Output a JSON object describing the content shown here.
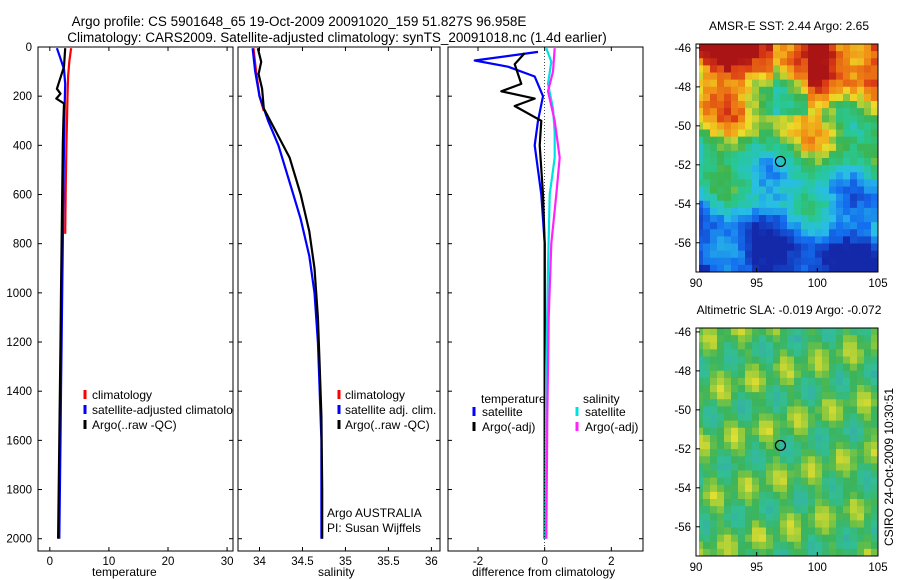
{
  "figure": {
    "title_line1": "Argo profile: CS 5901648_65 19-Oct-2009 20091020_159 51.827S 96.958E",
    "title_line2": "Climatology: CARS2009. Satellite-adjusted climatology: synTS_20091018.nc (1.4d earlier)",
    "stamp": "CSIRO 24-Oct-2009 10:30:51",
    "argo_note_line1": "Argo AUSTRALIA",
    "argo_note_line2": "PI: Susan Wijffels"
  },
  "colors": {
    "red": "#ff0000",
    "blue": "#0000ff",
    "black": "#000000",
    "cyan": "#00e0e0",
    "magenta": "#ff22ff"
  },
  "chart_data": [
    {
      "type": "line",
      "id": "temperature",
      "xlabel": "temperature",
      "xlim": [
        -2,
        31
      ],
      "ylim": [
        2050,
        0
      ],
      "xticks": [
        0,
        10,
        20,
        30
      ],
      "yticks": [
        0,
        200,
        400,
        600,
        800,
        1000,
        1200,
        1400,
        1600,
        1800,
        2000
      ],
      "legend": [
        "climatology",
        "satellite-adjusted climatology",
        "Argo(..raw -QC)"
      ],
      "series": [
        {
          "name": "climatology",
          "color": "red",
          "points": [
            [
              3.6,
              5
            ],
            [
              3.3,
              60
            ],
            [
              3.1,
              120
            ],
            [
              3.0,
              200
            ],
            [
              2.9,
              300
            ],
            [
              2.8,
              400
            ],
            [
              2.7,
              550
            ],
            [
              2.6,
              760
            ]
          ]
        },
        {
          "name": "satellite-adjusted climatology",
          "color": "blue",
          "points": [
            [
              1.2,
              5
            ],
            [
              1.7,
              40
            ],
            [
              2.4,
              90
            ],
            [
              2.6,
              150
            ],
            [
              2.5,
              250
            ],
            [
              2.4,
              400
            ],
            [
              2.3,
              600
            ],
            [
              2.2,
              800
            ],
            [
              2.1,
              1000
            ],
            [
              2.0,
              1200
            ],
            [
              1.9,
              1400
            ],
            [
              1.8,
              1600
            ],
            [
              1.7,
              1800
            ],
            [
              1.6,
              2000
            ]
          ]
        },
        {
          "name": "Argo(..raw -QC)",
          "color": "black",
          "points": [
            [
              2.6,
              5
            ],
            [
              2.4,
              80
            ],
            [
              1.2,
              170
            ],
            [
              1.8,
              190
            ],
            [
              1.1,
              210
            ],
            [
              2.4,
              230
            ],
            [
              2.3,
              300
            ],
            [
              2.2,
              400
            ],
            [
              2.1,
              600
            ],
            [
              2.0,
              800
            ],
            [
              1.9,
              1000
            ],
            [
              1.8,
              1200
            ],
            [
              1.7,
              1400
            ],
            [
              1.6,
              1600
            ],
            [
              1.5,
              1800
            ],
            [
              1.4,
              2000
            ]
          ]
        }
      ]
    },
    {
      "type": "line",
      "id": "salinity",
      "xlabel": "salinity",
      "xlim": [
        33.75,
        36.1
      ],
      "ylim": [
        2050,
        0
      ],
      "xticks": [
        34,
        34.5,
        35,
        35.5,
        36
      ],
      "legend": [
        "climatology",
        "satellite adj. clim.",
        "Argo(..raw -QC)"
      ],
      "series": [
        {
          "name": "climatology",
          "color": "red",
          "points": [
            [
              33.93,
              5
            ],
            [
              33.96,
              100
            ],
            [
              34.0,
              200
            ],
            [
              34.05,
              260
            ]
          ]
        },
        {
          "name": "satellite adj. clim.",
          "color": "blue",
          "points": [
            [
              33.92,
              5
            ],
            [
              33.95,
              100
            ],
            [
              34.0,
              200
            ],
            [
              34.1,
              300
            ],
            [
              34.22,
              400
            ],
            [
              34.35,
              550
            ],
            [
              34.48,
              700
            ],
            [
              34.58,
              850
            ],
            [
              34.64,
              1000
            ],
            [
              34.68,
              1200
            ],
            [
              34.7,
              1400
            ],
            [
              34.72,
              1600
            ],
            [
              34.72,
              1800
            ],
            [
              34.72,
              2000
            ]
          ]
        },
        {
          "name": "Argo(..raw -QC)",
          "color": "black",
          "points": [
            [
              33.98,
              5
            ],
            [
              34.02,
              60
            ],
            [
              33.99,
              110
            ],
            [
              34.03,
              170
            ],
            [
              34.05,
              250
            ],
            [
              34.2,
              350
            ],
            [
              34.35,
              450
            ],
            [
              34.48,
              600
            ],
            [
              34.58,
              750
            ],
            [
              34.64,
              900
            ],
            [
              34.68,
              1100
            ],
            [
              34.7,
              1300
            ],
            [
              34.72,
              1500
            ],
            [
              34.73,
              1800
            ],
            [
              34.73,
              2000
            ]
          ]
        }
      ]
    },
    {
      "type": "line",
      "id": "difference",
      "xlabel": "difference from climatology",
      "xlim": [
        -2.9,
        2.95
      ],
      "ylim": [
        2050,
        0
      ],
      "xticks": [
        -2,
        0,
        2
      ],
      "legend_titles": [
        "temperature",
        "salinity"
      ],
      "legend": [
        "satellite",
        "Argo(-adj)",
        "satellite",
        "Argo(-adj)"
      ],
      "series": [
        {
          "name": "temperature satellite",
          "color": "blue",
          "points": [
            [
              -0.2,
              20
            ],
            [
              -2.1,
              55
            ],
            [
              -1.1,
              80
            ],
            [
              -0.3,
              120
            ],
            [
              -0.05,
              200
            ],
            [
              -0.2,
              300
            ],
            [
              -0.3,
              400
            ],
            [
              -0.1,
              600
            ],
            [
              0,
              800
            ],
            [
              0,
              1200
            ],
            [
              0,
              2000
            ]
          ]
        },
        {
          "name": "temperature Argo(-adj)",
          "color": "black",
          "points": [
            [
              -0.6,
              25
            ],
            [
              -0.9,
              70
            ],
            [
              -0.7,
              150
            ],
            [
              -1.3,
              180
            ],
            [
              -0.3,
              210
            ],
            [
              -0.9,
              240
            ],
            [
              -0.1,
              300
            ],
            [
              -0.15,
              400
            ],
            [
              -0.05,
              600
            ],
            [
              0,
              800
            ],
            [
              0,
              2000
            ]
          ]
        },
        {
          "name": "salinity satellite",
          "color": "cyan",
          "points": [
            [
              0.05,
              5
            ],
            [
              0.2,
              60
            ],
            [
              0.1,
              150
            ],
            [
              0.25,
              250
            ],
            [
              0.3,
              350
            ],
            [
              0.3,
              450
            ],
            [
              0.15,
              600
            ],
            [
              0.1,
              900
            ],
            [
              0.05,
              1300
            ],
            [
              0.02,
              2000
            ]
          ]
        },
        {
          "name": "salinity Argo(-adj)",
          "color": "magenta",
          "points": [
            [
              0.3,
              5
            ],
            [
              0.25,
              100
            ],
            [
              0.1,
              180
            ],
            [
              0.3,
              300
            ],
            [
              0.45,
              450
            ],
            [
              0.35,
              600
            ],
            [
              0.2,
              800
            ],
            [
              0.12,
              1100
            ],
            [
              0.08,
              1500
            ],
            [
              0.05,
              2000
            ]
          ]
        }
      ]
    },
    {
      "type": "heatmap",
      "id": "sst_map",
      "title": "AMSR-E SST: 2.44 Argo: 2.65",
      "xlim": [
        90,
        105
      ],
      "ylim": [
        -57.5,
        -45.8
      ],
      "xticks": [
        90,
        95,
        100,
        105
      ],
      "yticks": [
        -46,
        -48,
        -50,
        -52,
        -54,
        -56
      ],
      "marker": [
        96.958,
        -51.827
      ]
    },
    {
      "type": "heatmap",
      "id": "sla_map",
      "title": "Altimetric SLA: -0.019 Argo: -0.072",
      "xlim": [
        90,
        105
      ],
      "ylim": [
        -57.5,
        -45.8
      ],
      "xticks": [
        90,
        95,
        100,
        105
      ],
      "yticks": [
        -46,
        -48,
        -50,
        -52,
        -54,
        -56
      ],
      "marker": [
        96.958,
        -51.827
      ]
    }
  ]
}
